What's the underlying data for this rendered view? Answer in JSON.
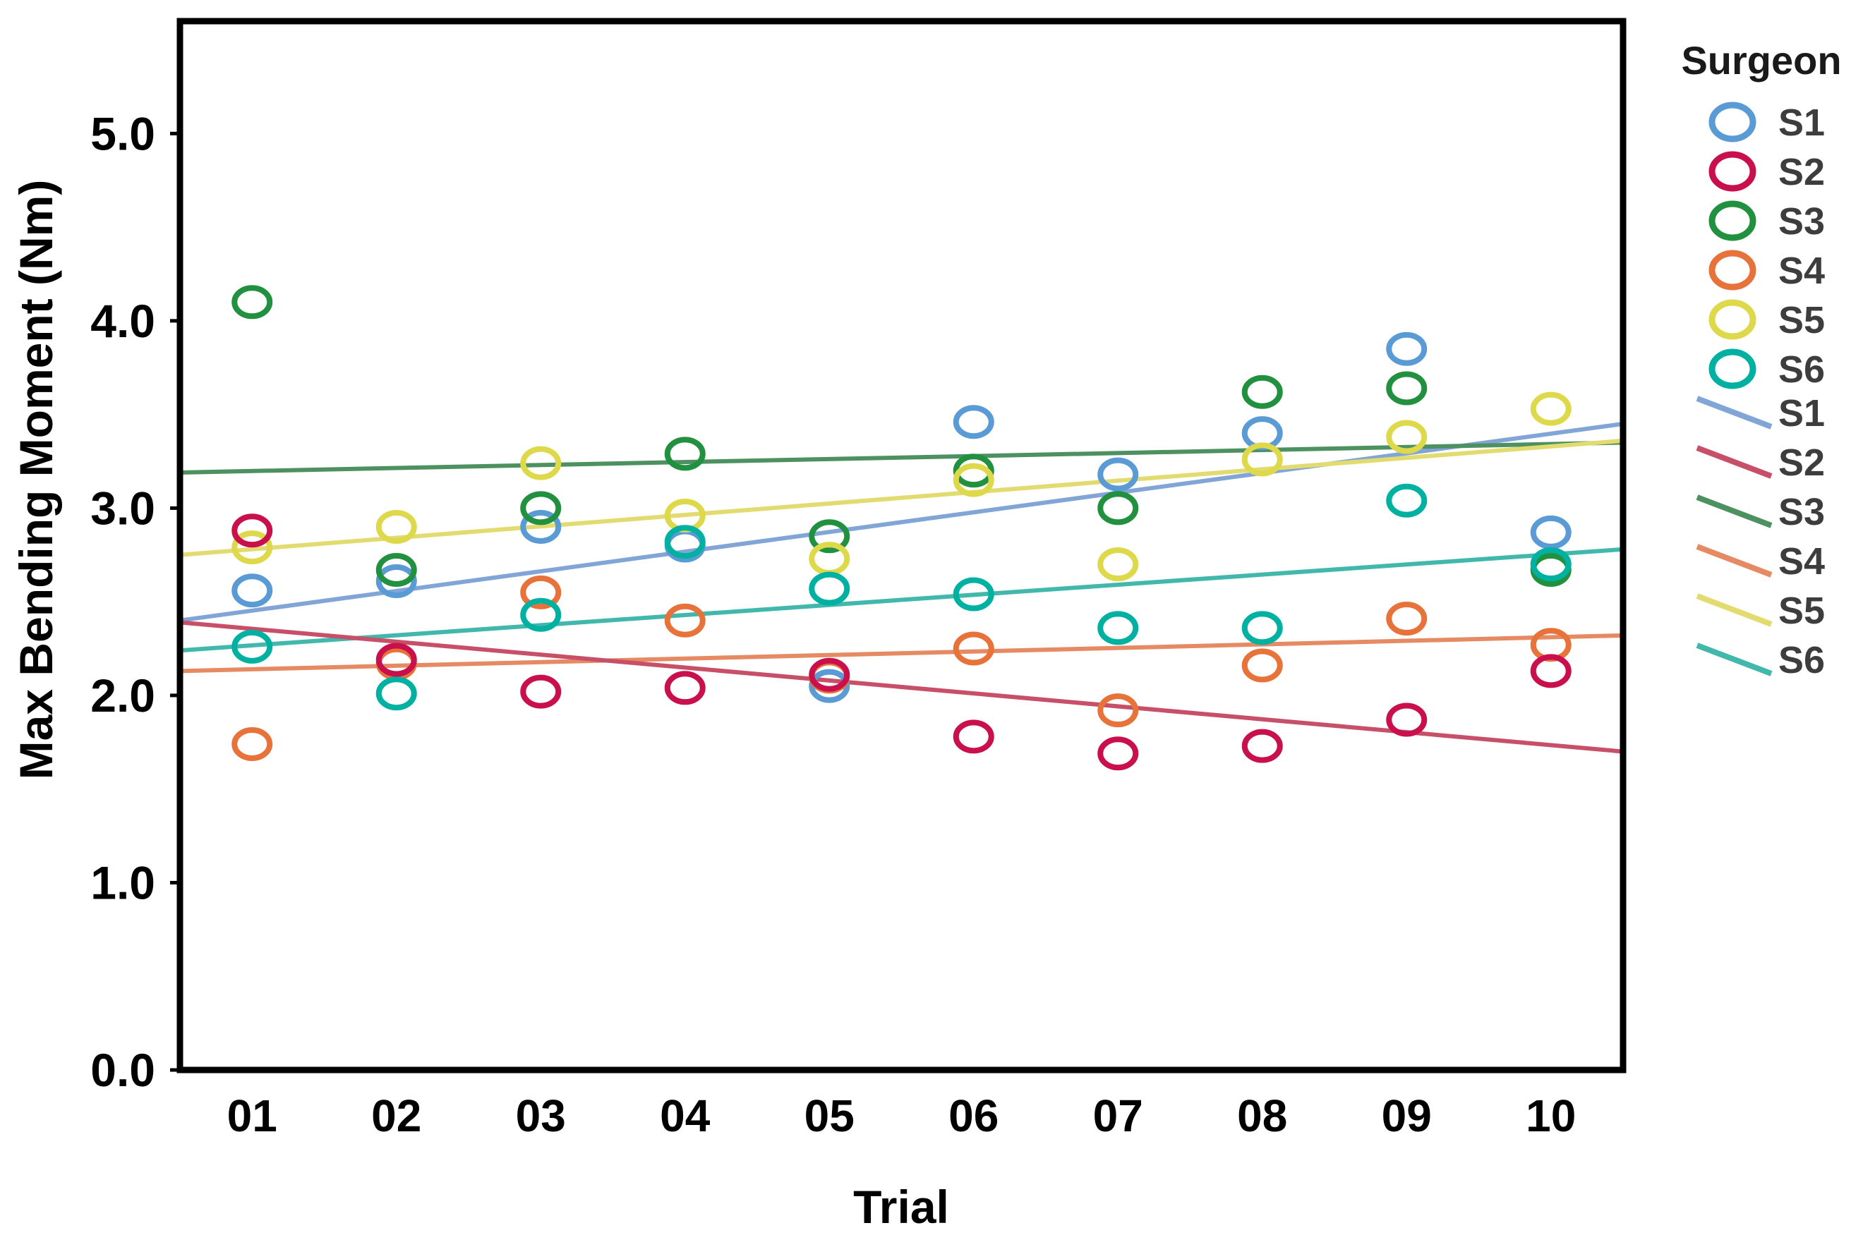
{
  "figure": {
    "background_color": "#ffffff",
    "axis_box_color": "#000000"
  },
  "chart_data": {
    "type": "scatter",
    "title": "",
    "xlabel": "Trial",
    "ylabel": "Max Bending Moment (Nm)",
    "legend_title": "Surgeon",
    "legend_position": "right",
    "grid": false,
    "xlim_trials": [
      0.5,
      10.5
    ],
    "ylim": [
      0.0,
      5.6
    ],
    "x_tick_labels": [
      "01",
      "02",
      "03",
      "04",
      "05",
      "06",
      "07",
      "08",
      "09",
      "10"
    ],
    "y_tick_labels": [
      "0.0",
      "1.0",
      "2.0",
      "3.0",
      "4.0",
      "5.0"
    ],
    "y_tick_values": [
      0,
      1,
      2,
      3,
      4,
      5
    ],
    "x_values_trials": [
      1,
      2,
      3,
      4,
      5,
      6,
      7,
      8,
      9,
      10
    ],
    "marker_shape": "open-circle",
    "series": [
      {
        "name": "S1",
        "marker_color": "#5B9BD5",
        "line_color": "#82A5D8",
        "values": [
          2.56,
          2.61,
          2.9,
          2.8,
          2.05,
          3.46,
          3.18,
          3.4,
          3.85,
          2.87
        ],
        "trend_start": 2.4,
        "trend_end": 3.45
      },
      {
        "name": "S2",
        "marker_color": "#C9104C",
        "line_color": "#C75068",
        "values": [
          2.88,
          2.19,
          2.02,
          2.04,
          2.11,
          1.78,
          1.69,
          1.73,
          1.87,
          2.13
        ],
        "trend_start": 2.39,
        "trend_end": 1.7
      },
      {
        "name": "S3",
        "marker_color": "#22913F",
        "line_color": "#4D9161",
        "values": [
          4.1,
          2.67,
          3.0,
          3.29,
          2.85,
          3.2,
          3.0,
          3.62,
          3.64,
          2.67
        ],
        "trend_start": 3.19,
        "trend_end": 3.35
      },
      {
        "name": "S4",
        "marker_color": "#E7733B",
        "line_color": "#E58A62",
        "values": [
          1.74,
          2.17,
          2.55,
          2.4,
          2.1,
          2.25,
          1.92,
          2.16,
          2.41,
          2.27
        ],
        "trend_start": 2.13,
        "trend_end": 2.32
      },
      {
        "name": "S5",
        "marker_color": "#DDD94A",
        "line_color": "#E2DC70",
        "values": [
          2.79,
          2.9,
          3.24,
          2.96,
          2.73,
          3.15,
          2.7,
          3.26,
          3.38,
          3.53
        ],
        "trend_start": 2.75,
        "trend_end": 3.36
      },
      {
        "name": "S6",
        "marker_color": "#00B1A2",
        "line_color": "#42B8AC",
        "values": [
          2.26,
          2.01,
          2.43,
          2.82,
          2.57,
          2.54,
          2.36,
          2.36,
          3.04,
          2.7
        ],
        "trend_start": 2.24,
        "trend_end": 2.78
      }
    ],
    "point_draw_order": [
      "S1",
      "S3",
      "S5",
      "S4",
      "S6",
      "S2"
    ]
  }
}
